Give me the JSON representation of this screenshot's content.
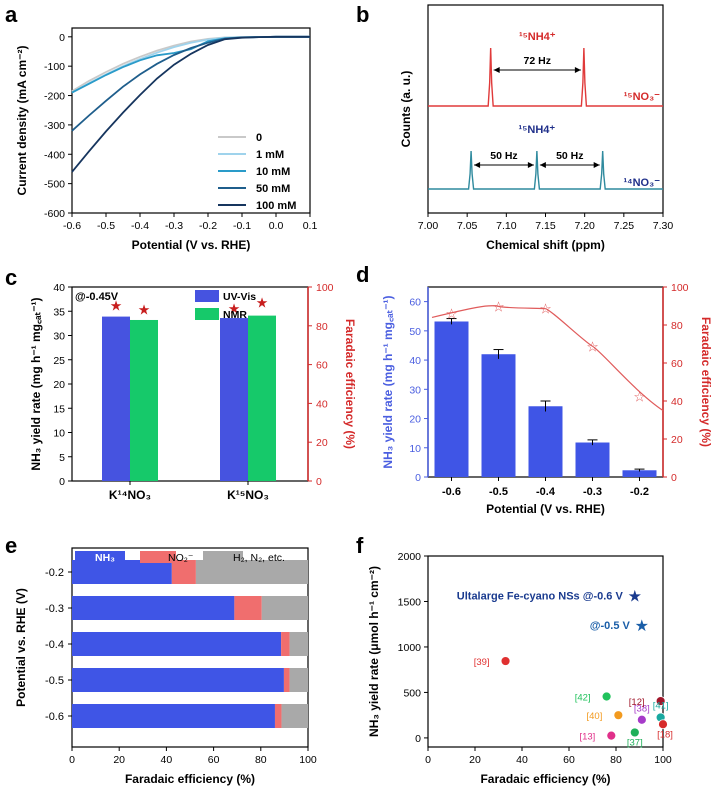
{
  "panels": {
    "a": "a",
    "b": "b",
    "c": "c",
    "d": "d",
    "e": "e",
    "f": "f"
  },
  "chart_data": [
    {
      "id": "a",
      "type": "line",
      "xlabel": "Potential (V vs. RHE)",
      "ylabel": "Current density (mA cm⁻²)",
      "xlim": [
        -0.6,
        0.1
      ],
      "ylim": [
        -600,
        30
      ],
      "xticks": [
        "-0.6",
        "-0.5",
        "-0.4",
        "-0.3",
        "-0.2",
        "-0.1",
        "0.0",
        "0.1"
      ],
      "yticks": [
        "0",
        "-100",
        "-200",
        "-300",
        "-400",
        "-500",
        "-600"
      ],
      "x": [
        -0.6,
        -0.55,
        -0.5,
        -0.45,
        -0.4,
        -0.35,
        -0.3,
        -0.25,
        -0.2,
        -0.15,
        -0.1,
        -0.05,
        0.0,
        0.05,
        0.1
      ],
      "series": [
        {
          "name": "0",
          "color": "#c9c9c9",
          "values": [
            -185,
            -150,
            -120,
            -92,
            -68,
            -47,
            -30,
            -16,
            -7,
            -2,
            -1,
            -0.5,
            0,
            0,
            0
          ]
        },
        {
          "name": "1 mM",
          "color": "#9fd3ec",
          "values": [
            -190,
            -158,
            -128,
            -100,
            -76,
            -54,
            -35,
            -20,
            -9,
            -3,
            -1,
            -0.5,
            0,
            0,
            0
          ]
        },
        {
          "name": "10 mM",
          "color": "#2a9bc9",
          "values": [
            -190,
            -160,
            -130,
            -103,
            -80,
            -63,
            -55,
            -42,
            -15,
            -5,
            -2,
            -1,
            0,
            0,
            0
          ]
        },
        {
          "name": "50 mM",
          "color": "#1f5e8c",
          "values": [
            -320,
            -268,
            -218,
            -170,
            -128,
            -92,
            -62,
            -38,
            -20,
            -6,
            -2,
            -1,
            0,
            0,
            0
          ]
        },
        {
          "name": "100 mM",
          "color": "#16355e",
          "values": [
            -460,
            -390,
            -322,
            -258,
            -198,
            -142,
            -95,
            -58,
            -28,
            -8,
            -3,
            -1,
            0,
            0,
            0
          ]
        }
      ]
    },
    {
      "id": "b",
      "type": "line",
      "xlabel": "Chemical shift (ppm)",
      "ylabel": "Counts (a. u.)",
      "xlim": [
        7.0,
        7.3
      ],
      "xticks": [
        "7.00",
        "7.05",
        "7.10",
        "7.15",
        "7.20",
        "7.25",
        "7.30"
      ],
      "series": [
        {
          "name": "¹⁵NO₃⁻",
          "color": "#e03a3a",
          "peaks": [
            7.08,
            7.199
          ],
          "label": "¹⁵NH4⁺",
          "split": "72 Hz"
        },
        {
          "name": "¹⁴NO₃⁻",
          "color": "#2f8a9e",
          "peaks": [
            7.055,
            7.139,
            7.223
          ],
          "label": "¹⁵NH4⁺",
          "split": [
            "50 Hz",
            "50 Hz"
          ]
        }
      ]
    },
    {
      "id": "c",
      "type": "bar",
      "annotation": "@-0.45V",
      "categories": [
        "K¹⁴NO₃",
        "K¹⁵NO₃"
      ],
      "ylabel": "NH₃ yield rate (mg h⁻¹ mg꜀ₐₜ⁻¹)",
      "y2label": "Faradaic efficiency (%)",
      "ylim": [
        0,
        40
      ],
      "y2lim": [
        0,
        100
      ],
      "yticks": [
        "0",
        "5",
        "10",
        "15",
        "20",
        "25",
        "30",
        "35",
        "40"
      ],
      "y2ticks": [
        "0",
        "20",
        "40",
        "60",
        "80",
        "100"
      ],
      "series": [
        {
          "name": "UV-Vis",
          "color": "#4653e0",
          "values": [
            33.9,
            33.6
          ],
          "fe": [
            90.5,
            89.0
          ]
        },
        {
          "name": "NMR",
          "color": "#16c96a",
          "values": [
            33.2,
            34.1
          ],
          "fe": [
            88.5,
            92.0
          ]
        }
      ]
    },
    {
      "id": "d",
      "type": "bar",
      "categories": [
        "-0.6",
        "-0.5",
        "-0.4",
        "-0.3",
        "-0.2"
      ],
      "xlabel": "Potential (V vs. RHE)",
      "ylabel": "NH₃ yield rate (mg h⁻¹ mg꜀ₐₜ⁻¹)",
      "y2label": "Faradaic efficiency (%)",
      "ylim": [
        0,
        65
      ],
      "y2lim": [
        0,
        100
      ],
      "yticks": [
        "0",
        "10",
        "20",
        "30",
        "40",
        "50",
        "60"
      ],
      "y2ticks": [
        "0",
        "20",
        "40",
        "60",
        "80",
        "100"
      ],
      "values": [
        53.2,
        42.0,
        24.2,
        11.8,
        2.3
      ],
      "errors": [
        1.0,
        1.6,
        1.8,
        0.9,
        0.4
      ],
      "fe": [
        86.0,
        89.8,
        88.6,
        68.8,
        42.3
      ],
      "bar_color": "#3f55e6",
      "line_color": "#e05b5b"
    },
    {
      "id": "e",
      "type": "bar",
      "orientation": "horizontal-stacked",
      "xlabel": "Faradaic efficiency (%)",
      "ylabel": "Potential vs. RHE (V)",
      "xlim": [
        0,
        100
      ],
      "xticks": [
        "0",
        "20",
        "40",
        "60",
        "80",
        "100"
      ],
      "categories": [
        "-0.2",
        "-0.3",
        "-0.4",
        "-0.5",
        "-0.6"
      ],
      "series": [
        {
          "name": "NH₃",
          "color": "#3f55e6",
          "values": [
            42.3,
            68.8,
            88.6,
            89.8,
            86.0
          ]
        },
        {
          "name": "NO₂⁻",
          "color": "#f06e6e",
          "values": [
            10.2,
            11.6,
            3.6,
            2.4,
            2.8
          ]
        },
        {
          "name": "H₂, N₂, etc.",
          "color": "#a9a9a9",
          "values": [
            47.5,
            19.6,
            7.8,
            7.8,
            11.2
          ]
        }
      ]
    },
    {
      "id": "f",
      "type": "scatter",
      "xlabel": "Faradaic efficiency (%)",
      "ylabel": "NH₃ yield rate (μmol h⁻¹ cm⁻²)",
      "xlim": [
        0,
        100
      ],
      "ylim": [
        -100,
        2000
      ],
      "xticks": [
        "0",
        "20",
        "40",
        "60",
        "80",
        "100"
      ],
      "yticks": [
        "0",
        "500",
        "1000",
        "1500",
        "2000"
      ],
      "points": [
        {
          "label": "[39]",
          "x": 33,
          "y": 845,
          "color": "#e03030"
        },
        {
          "label": "[42]",
          "x": 76,
          "y": 455,
          "color": "#21c25c"
        },
        {
          "label": "[40]",
          "x": 81,
          "y": 250,
          "color": "#f29a1f"
        },
        {
          "label": "[38]",
          "x": 91,
          "y": 200,
          "color": "#a63ac9"
        },
        {
          "label": "[12]",
          "x": 99,
          "y": 405,
          "color": "#a0162a"
        },
        {
          "label": "[41]",
          "x": 99,
          "y": 225,
          "color": "#18a9a0"
        },
        {
          "label": "[13]",
          "x": 78,
          "y": 25,
          "color": "#e0308a"
        },
        {
          "label": "[37]",
          "x": 88,
          "y": 60,
          "color": "#1fb05a"
        },
        {
          "label": "[18]",
          "x": 100,
          "y": 150,
          "color": "#d62a2a"
        }
      ],
      "stars": [
        {
          "label": "Ultalarge Fe-cyano NSs @-0.6 V",
          "x": 88,
          "y": 1565,
          "color": "#1a3b8f"
        },
        {
          "label": "@-0.5 V",
          "x": 91,
          "y": 1240,
          "color": "#1a5ea8"
        }
      ]
    }
  ]
}
